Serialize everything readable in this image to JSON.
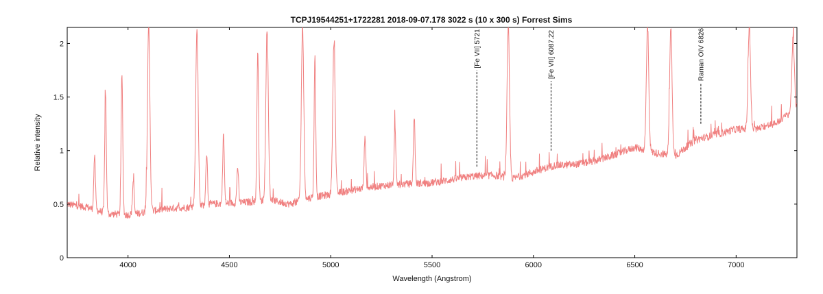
{
  "chart_data": {
    "type": "line",
    "title": "TCPJ19544251+1722281   2018-09-07.178   3022 s (10 x 300 s)   Forrest Sims",
    "xlabel": "Wavelength (Angstrom)",
    "ylabel": "Relative intensity",
    "xlim": [
      3700,
      7300
    ],
    "ylim": [
      0,
      2.15
    ],
    "xticks": [
      4000,
      4500,
      5000,
      5500,
      6000,
      6500,
      7000
    ],
    "yticks": [
      0,
      0.5,
      1,
      1.5,
      2
    ],
    "xtick_labels": [
      "4000",
      "4500",
      "5000",
      "5500",
      "6000",
      "6500",
      "7000"
    ],
    "ytick_labels": [
      "0",
      "0.5",
      "1",
      "1.5",
      "2"
    ],
    "grid": false,
    "line_color": "#f08080",
    "continuum": [
      [
        3700,
        0.5
      ],
      [
        3800,
        0.47
      ],
      [
        3900,
        0.41
      ],
      [
        4000,
        0.4
      ],
      [
        4100,
        0.43
      ],
      [
        4200,
        0.46
      ],
      [
        4300,
        0.47
      ],
      [
        4400,
        0.5
      ],
      [
        4500,
        0.51
      ],
      [
        4600,
        0.52
      ],
      [
        4700,
        0.54
      ],
      [
        4800,
        0.5
      ],
      [
        4900,
        0.56
      ],
      [
        5000,
        0.59
      ],
      [
        5100,
        0.63
      ],
      [
        5200,
        0.66
      ],
      [
        5300,
        0.68
      ],
      [
        5400,
        0.69
      ],
      [
        5500,
        0.7
      ],
      [
        5600,
        0.73
      ],
      [
        5700,
        0.76
      ],
      [
        5800,
        0.77
      ],
      [
        5900,
        0.74
      ],
      [
        6000,
        0.8
      ],
      [
        6100,
        0.86
      ],
      [
        6200,
        0.87
      ],
      [
        6300,
        0.9
      ],
      [
        6400,
        0.96
      ],
      [
        6500,
        1.03
      ],
      [
        6600,
        0.98
      ],
      [
        6700,
        0.95
      ],
      [
        6800,
        1.1
      ],
      [
        6900,
        1.15
      ],
      [
        7000,
        1.2
      ],
      [
        7100,
        1.2
      ],
      [
        7200,
        1.26
      ],
      [
        7300,
        1.4
      ]
    ],
    "emission_lines": [
      {
        "x": 3835,
        "peak": 0.95
      },
      {
        "x": 3889,
        "peak": 1.54
      },
      {
        "x": 3970,
        "peak": 1.7
      },
      {
        "x": 4026,
        "peak": 0.72
      },
      {
        "x": 4102,
        "peak": 2.15
      },
      {
        "x": 4340,
        "peak": 2.15
      },
      {
        "x": 4388,
        "peak": 0.98
      },
      {
        "x": 4471,
        "peak": 1.16
      },
      {
        "x": 4541,
        "peak": 0.85
      },
      {
        "x": 4640,
        "peak": 1.96
      },
      {
        "x": 4686,
        "peak": 2.15
      },
      {
        "x": 4861,
        "peak": 2.15
      },
      {
        "x": 4922,
        "peak": 1.87
      },
      {
        "x": 5016,
        "peak": 2.02
      },
      {
        "x": 5169,
        "peak": 1.15
      },
      {
        "x": 5317,
        "peak": 1.2
      },
      {
        "x": 5412,
        "peak": 1.32
      },
      {
        "x": 5876,
        "peak": 2.15
      },
      {
        "x": 6563,
        "peak": 2.15
      },
      {
        "x": 6678,
        "peak": 2.15
      },
      {
        "x": 7065,
        "peak": 2.15
      },
      {
        "x": 7281,
        "peak": 2.06
      }
    ],
    "annotations": [
      {
        "label": "[Fe VII] 5721",
        "x": 5721,
        "y_from": 0.85,
        "y_to": 1.75
      },
      {
        "label": "[Fe VII] 6087.22",
        "x": 6087,
        "y_from": 1.0,
        "y_to": 1.65
      },
      {
        "label": "Raman OIV 6826",
        "x": 6826,
        "y_from": 1.25,
        "y_to": 1.63
      }
    ]
  }
}
